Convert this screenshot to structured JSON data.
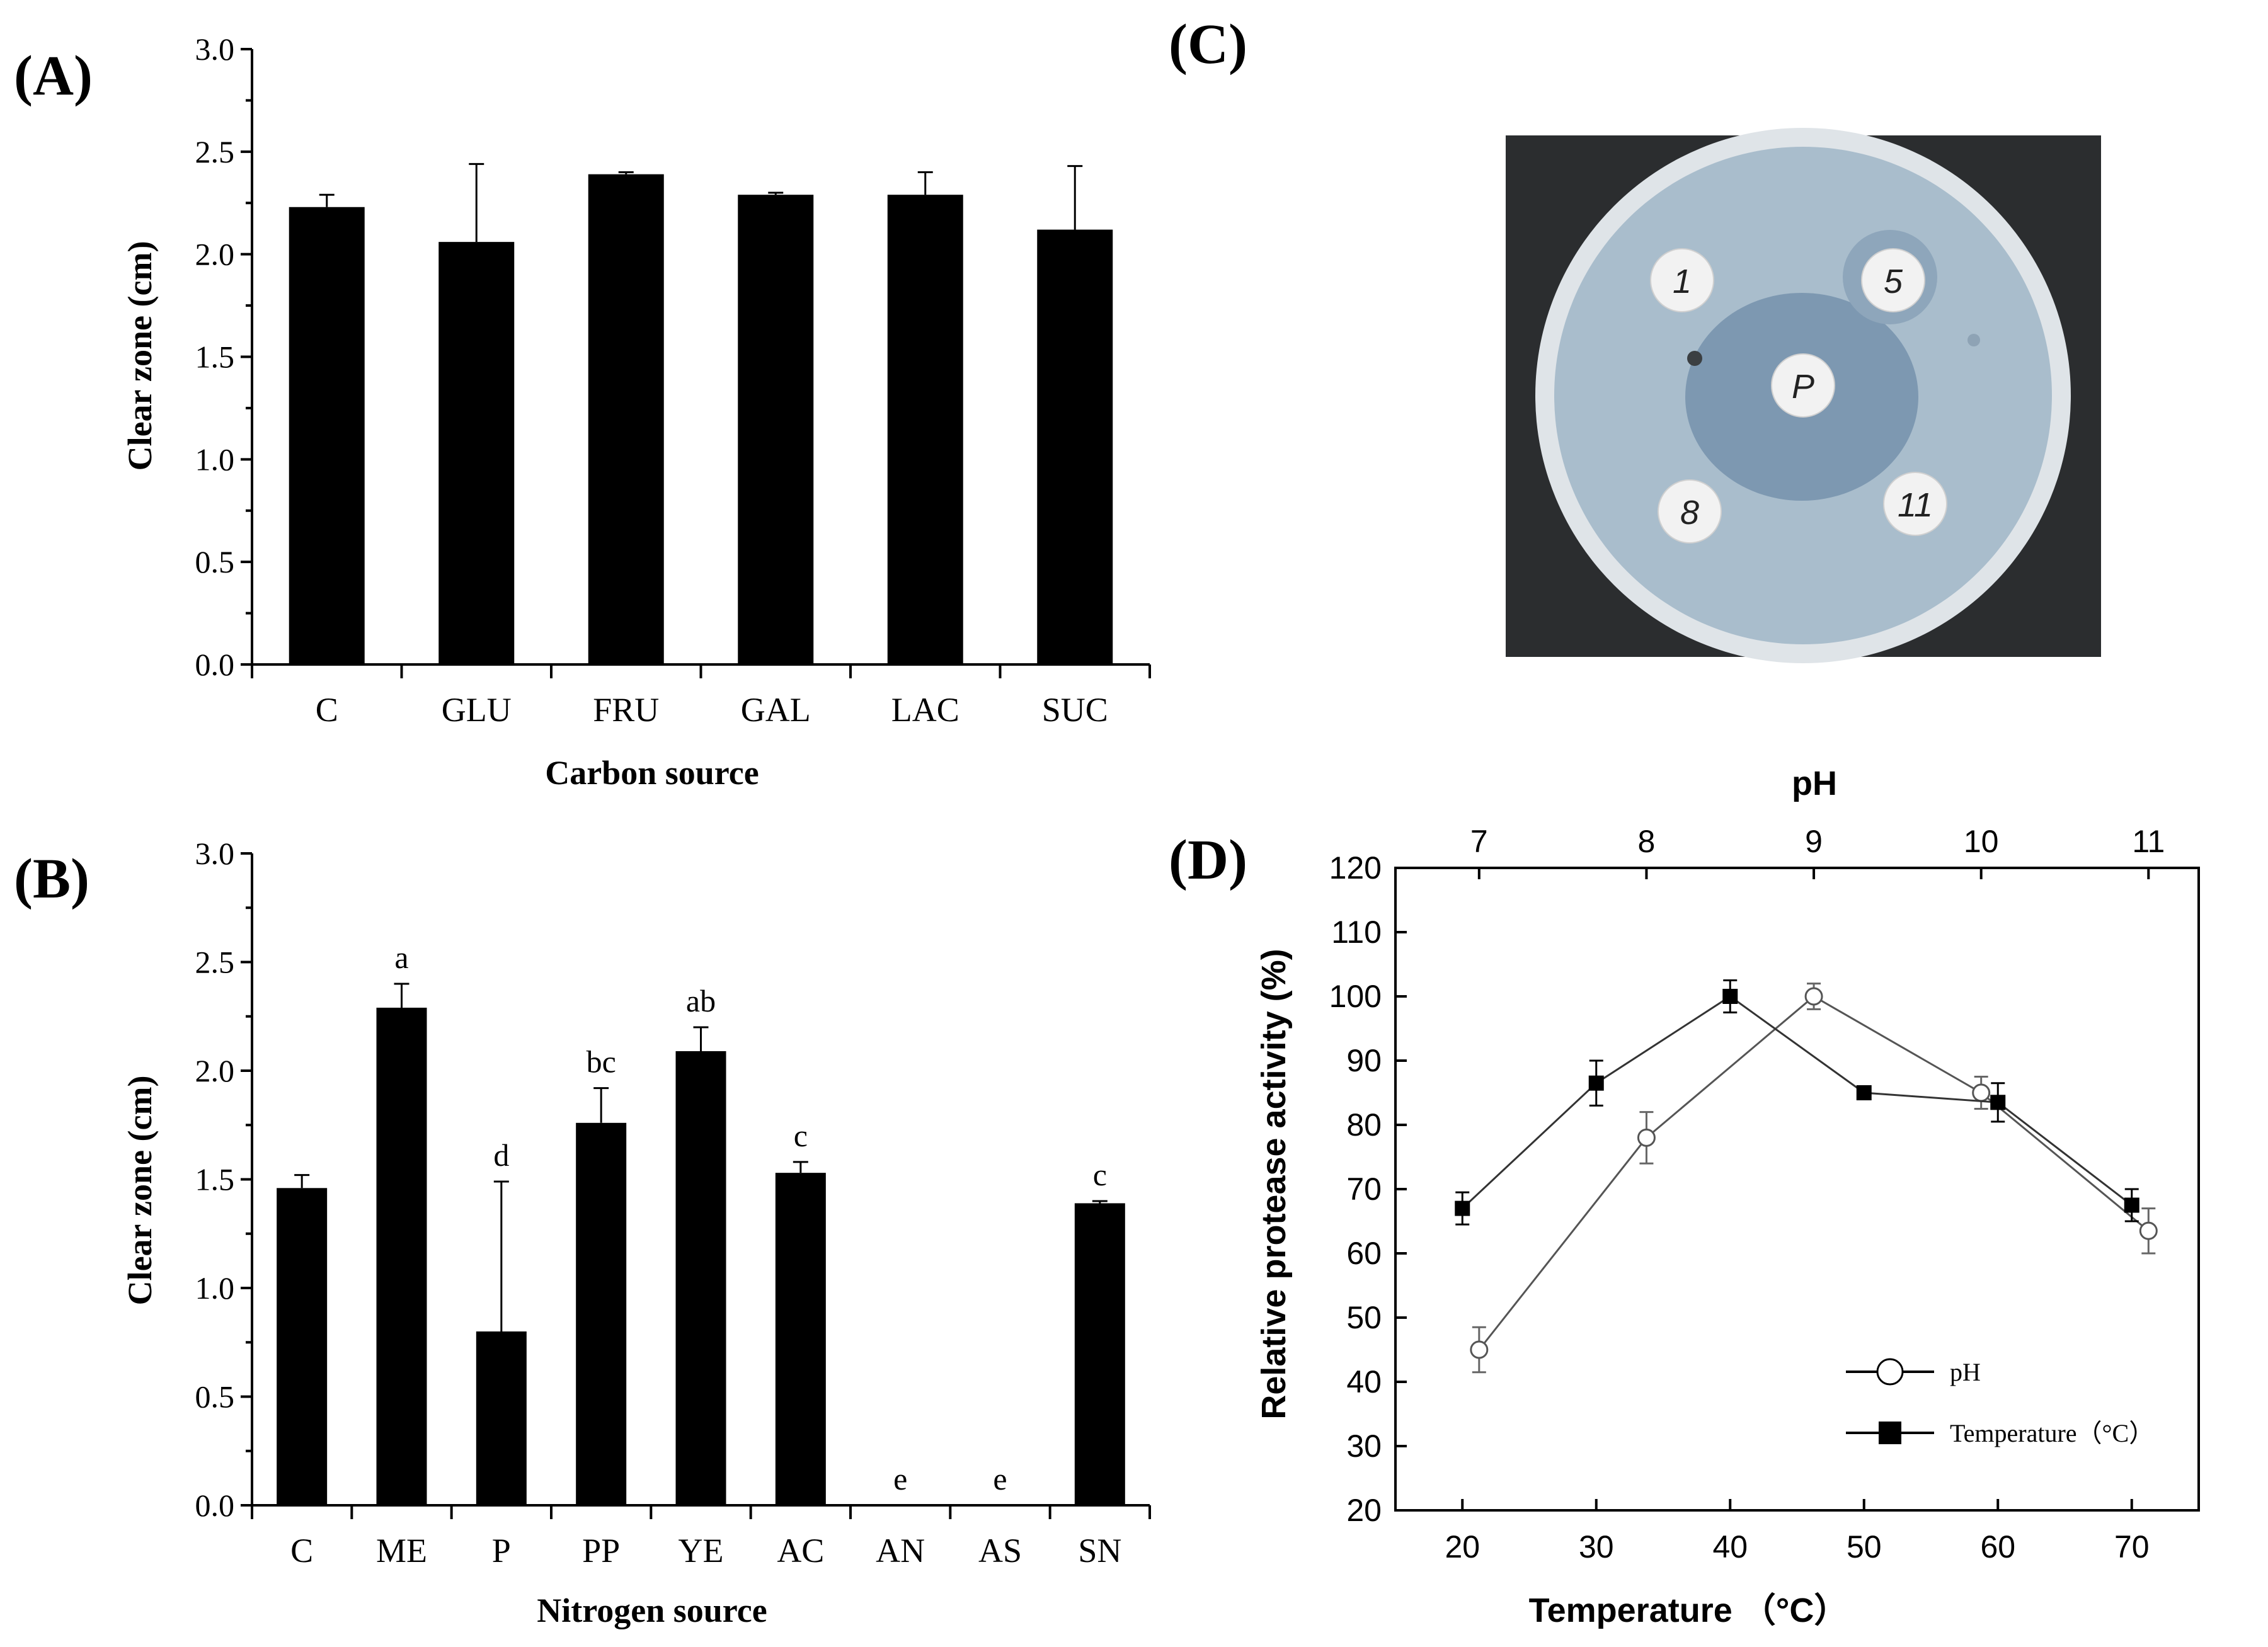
{
  "panels": {
    "A": {
      "label": "(A)"
    },
    "B": {
      "label": "(B)"
    },
    "C": {
      "label": "(C)"
    },
    "D": {
      "label": "(D)"
    }
  },
  "plate": {
    "disks": [
      "1",
      "5",
      "P",
      "8",
      "11"
    ],
    "colors": {
      "background": "#2b2d2f",
      "agar": "#a9bdcc",
      "zone": "#7d98b1",
      "disk": "#f2f2f2"
    }
  },
  "chart_data": [
    {
      "panel": "A",
      "type": "bar",
      "categories": [
        "C",
        "GLU",
        "FRU",
        "GAL",
        "LAC",
        "SUC"
      ],
      "values": [
        2.23,
        2.06,
        2.39,
        2.29,
        2.29,
        2.12
      ],
      "errors": [
        0.06,
        0.38,
        0.01,
        0.01,
        0.11,
        0.31
      ],
      "xlabel": "Carbon source",
      "ylabel": "Clear zone (cm)",
      "ylim": [
        0,
        3.0
      ],
      "yticks": [
        "0.0",
        "0.5",
        "1.0",
        "1.5",
        "2.0",
        "2.5",
        "3.0"
      ]
    },
    {
      "panel": "B",
      "type": "bar",
      "categories": [
        "C",
        "ME",
        "P",
        "PP",
        "YE",
        "AC",
        "AN",
        "AS",
        "SN"
      ],
      "values": [
        1.46,
        2.29,
        0.8,
        1.76,
        2.09,
        1.53,
        0.0,
        0.0,
        1.39
      ],
      "errors": [
        0.06,
        0.11,
        0.69,
        0.16,
        0.11,
        0.05,
        0.0,
        0.0,
        0.01
      ],
      "significance": [
        "",
        "a",
        "d",
        "bc",
        "ab",
        "c",
        "e",
        "e",
        "c"
      ],
      "xlabel": "Nitrogen source",
      "ylabel": "Clear zone (cm)",
      "ylim": [
        0,
        3.0
      ],
      "yticks": [
        "0.0",
        "0.5",
        "1.0",
        "1.5",
        "2.0",
        "2.5",
        "3.0"
      ]
    },
    {
      "panel": "D",
      "type": "line",
      "xlabel": "Temperature （°C）",
      "x2label": "pH",
      "ylabel": "Relative protease activity (%)",
      "xlim": [
        15,
        75
      ],
      "x2lim": [
        6.5,
        11.3
      ],
      "ylim": [
        20,
        120
      ],
      "xticks": [
        "20",
        "30",
        "40",
        "50",
        "60",
        "70"
      ],
      "x2ticks": [
        "7",
        "8",
        "9",
        "10",
        "11"
      ],
      "yticks": [
        "20",
        "30",
        "40",
        "50",
        "60",
        "70",
        "80",
        "90",
        "100",
        "110",
        "120"
      ],
      "legend_position": "bottom-right",
      "series": [
        {
          "name": "pH",
          "axis": "top",
          "marker": "open-circle",
          "x": [
            7,
            8,
            9,
            10,
            11
          ],
          "y": [
            45,
            78,
            100,
            85,
            63.5
          ],
          "err": [
            3.5,
            4,
            2,
            2.5,
            3.5
          ]
        },
        {
          "name": "Temperature（°C）",
          "axis": "bottom",
          "marker": "filled-square",
          "x": [
            20,
            30,
            40,
            50,
            60,
            70
          ],
          "y": [
            67,
            86.5,
            100,
            85,
            83.5,
            67.5
          ],
          "err": [
            2.5,
            3.5,
            2.5,
            0,
            3,
            2.5
          ]
        }
      ]
    }
  ]
}
